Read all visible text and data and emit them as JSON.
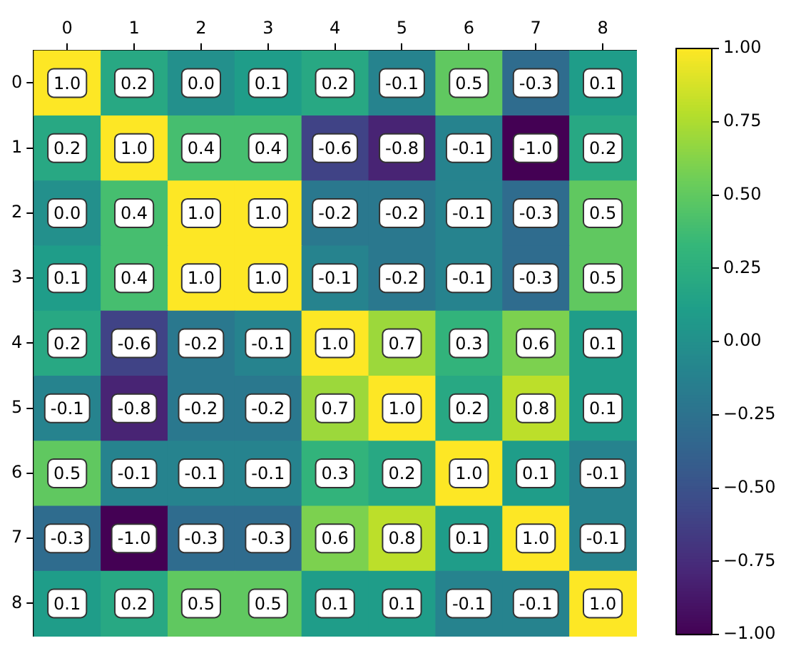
{
  "chart_data": {
    "type": "heatmap",
    "categories": [
      "0",
      "1",
      "2",
      "3",
      "4",
      "5",
      "6",
      "7",
      "8"
    ],
    "y_categories": [
      "0",
      "1",
      "2",
      "3",
      "4",
      "5",
      "6",
      "7",
      "8"
    ],
    "cells": [
      [
        1.0,
        0.2,
        0.0,
        0.1,
        0.2,
        -0.1,
        0.5,
        -0.3,
        0.1
      ],
      [
        0.2,
        1.0,
        0.4,
        0.4,
        -0.6,
        -0.8,
        -0.1,
        -1.0,
        0.2
      ],
      [
        0.0,
        0.4,
        1.0,
        1.0,
        -0.2,
        -0.2,
        -0.1,
        -0.3,
        0.5
      ],
      [
        0.1,
        0.4,
        1.0,
        1.0,
        -0.1,
        -0.2,
        -0.1,
        -0.3,
        0.5
      ],
      [
        0.2,
        -0.6,
        -0.2,
        -0.1,
        1.0,
        0.7,
        0.3,
        0.6,
        0.1
      ],
      [
        -0.1,
        -0.8,
        -0.2,
        -0.2,
        0.7,
        1.0,
        0.2,
        0.8,
        0.1
      ],
      [
        0.5,
        -0.1,
        -0.1,
        -0.1,
        0.3,
        0.2,
        1.0,
        0.1,
        -0.1
      ],
      [
        -0.3,
        -1.0,
        -0.3,
        -0.3,
        0.6,
        0.8,
        0.1,
        1.0,
        -0.1
      ],
      [
        0.1,
        0.2,
        0.5,
        0.5,
        0.1,
        0.1,
        -0.1,
        -0.1,
        1.0
      ]
    ],
    "cell_labels": [
      [
        "1.0",
        "0.2",
        "0.0",
        "0.1",
        "0.2",
        "-0.1",
        "0.5",
        "-0.3",
        "0.1"
      ],
      [
        "0.2",
        "1.0",
        "0.4",
        "0.4",
        "-0.6",
        "-0.8",
        "-0.1",
        "-1.0",
        "0.2"
      ],
      [
        "0.0",
        "0.4",
        "1.0",
        "1.0",
        "-0.2",
        "-0.2",
        "-0.1",
        "-0.3",
        "0.5"
      ],
      [
        "0.1",
        "0.4",
        "1.0",
        "1.0",
        "-0.1",
        "-0.2",
        "-0.1",
        "-0.3",
        "0.5"
      ],
      [
        "0.2",
        "-0.6",
        "-0.2",
        "-0.1",
        "1.0",
        "0.7",
        "0.3",
        "0.6",
        "0.1"
      ],
      [
        "-0.1",
        "-0.8",
        "-0.2",
        "-0.2",
        "0.7",
        "1.0",
        "0.2",
        "0.8",
        "0.1"
      ],
      [
        "0.5",
        "-0.1",
        "-0.1",
        "-0.1",
        "0.3",
        "0.2",
        "1.0",
        "0.1",
        "-0.1"
      ],
      [
        "-0.3",
        "-1.0",
        "-0.3",
        "-0.3",
        "0.6",
        "0.8",
        "0.1",
        "1.0",
        "-0.1"
      ],
      [
        "0.1",
        "0.2",
        "0.5",
        "0.5",
        "0.1",
        "0.1",
        "-0.1",
        "-0.1",
        "1.0"
      ]
    ],
    "clim": [
      -1,
      1
    ],
    "cticks": [
      {
        "value": -1,
        "label": "−1.00"
      },
      {
        "value": -0.75,
        "label": "−0.75"
      },
      {
        "value": -0.5,
        "label": "−0.50"
      },
      {
        "value": -0.25,
        "label": "−0.25"
      },
      {
        "value": 0,
        "label": "0.00"
      },
      {
        "value": 0.25,
        "label": "0.25"
      },
      {
        "value": 0.5,
        "label": "0.50"
      },
      {
        "value": 0.75,
        "label": "0.75"
      },
      {
        "value": 1,
        "label": "1.00"
      }
    ]
  }
}
